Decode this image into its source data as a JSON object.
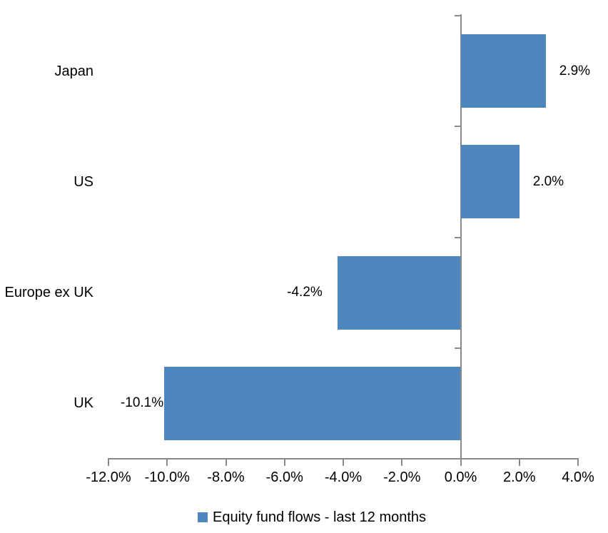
{
  "chart_data": {
    "type": "bar",
    "orientation": "horizontal",
    "title": "",
    "categories": [
      "Japan",
      "US",
      "Europe ex UK",
      "UK"
    ],
    "values": [
      2.9,
      2.0,
      -4.2,
      -10.1
    ],
    "data_labels": [
      "2.9%",
      "2.0%",
      "-4.2%",
      "-10.1%"
    ],
    "xlim": [
      -12,
      4
    ],
    "xtick_values": [
      -12,
      -10,
      -8,
      -6,
      -4,
      -2,
      0,
      2,
      4
    ],
    "xtick_labels": [
      "-12.0%",
      "-10.0%",
      "-8.0%",
      "-6.0%",
      "-4.0%",
      "-2.0%",
      "0.0%",
      "2.0%",
      "4.0%"
    ],
    "grid": false,
    "legend_position": "bottom",
    "legend": "Equity fund flows - last 12 months",
    "bar_color": "#4E86BE",
    "axis_color": "#8A8A8A",
    "text_color": "#000000"
  }
}
